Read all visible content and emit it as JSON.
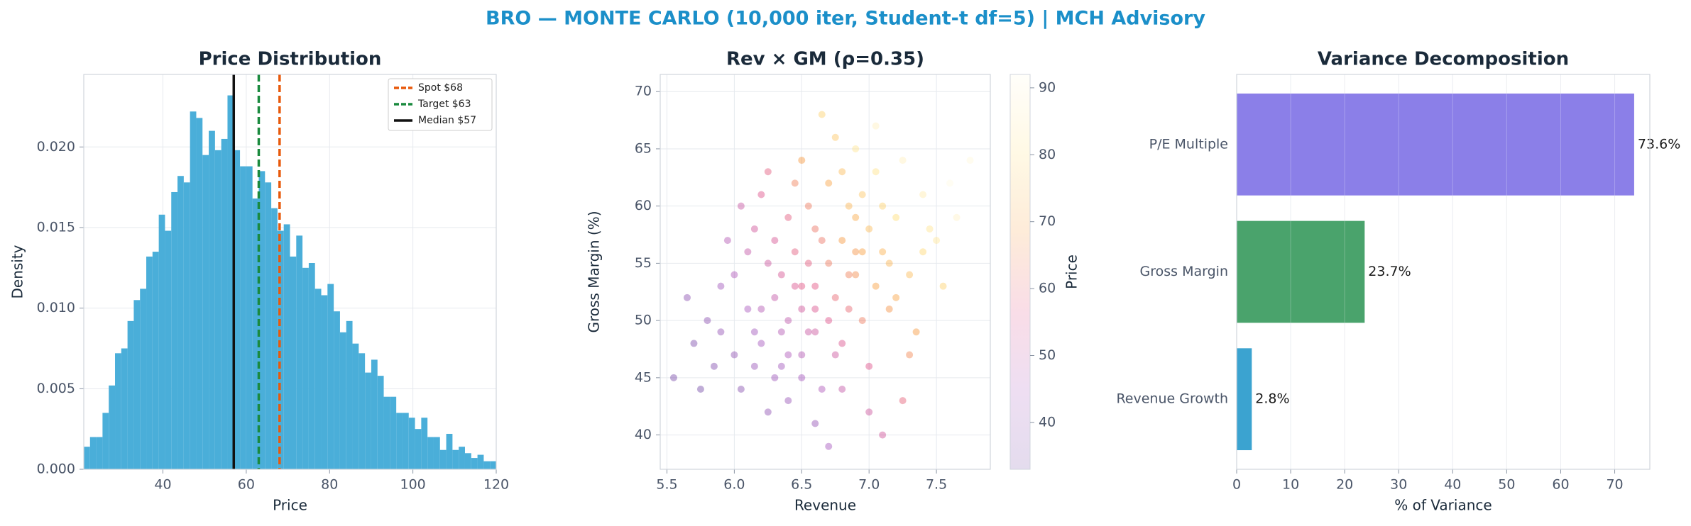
{
  "title": "BRO — MONTE CARLO (10,000 iter, Student-t df=5) | MCH Advisory",
  "chart_data": [
    {
      "type": "histogram",
      "title": "Price Distribution",
      "x_label": "Price",
      "y_label": "Density",
      "color": "#4aaed9",
      "bins": [
        21,
        22.5,
        24,
        25.5,
        27,
        28.5,
        30,
        31.5,
        33,
        34.5,
        36,
        37.5,
        39,
        40.5,
        42,
        43.5,
        45,
        46.5,
        48,
        49.5,
        51,
        52.5,
        54,
        55.5,
        57,
        58.5,
        60,
        61.5,
        63,
        64.5,
        66,
        67.5,
        69,
        70.5,
        72,
        73.5,
        75,
        76.5,
        78,
        79.5,
        81,
        82.5,
        84,
        85.5,
        87,
        88.5,
        90,
        91.5,
        93,
        94.5,
        96,
        97.5,
        99,
        100.5,
        102,
        103.5,
        105,
        106.5,
        108,
        109.5,
        111,
        112.5,
        114,
        115.5,
        117,
        118.5,
        120
      ],
      "values": [
        0.0014,
        0.002,
        0.002,
        0.0035,
        0.0052,
        0.0072,
        0.0075,
        0.0092,
        0.0105,
        0.0112,
        0.0132,
        0.0135,
        0.0158,
        0.0148,
        0.0172,
        0.0182,
        0.0178,
        0.0222,
        0.0218,
        0.0195,
        0.021,
        0.0198,
        0.0205,
        0.0232,
        0.0198,
        0.0188,
        0.0188,
        0.0168,
        0.0185,
        0.0178,
        0.0162,
        0.0148,
        0.0152,
        0.0132,
        0.0145,
        0.0125,
        0.0128,
        0.0112,
        0.0108,
        0.0115,
        0.0098,
        0.0085,
        0.0092,
        0.0078,
        0.0072,
        0.006,
        0.0068,
        0.0058,
        0.0045,
        0.0045,
        0.0035,
        0.0035,
        0.0032,
        0.0025,
        0.0032,
        0.002,
        0.002,
        0.0012,
        0.0022,
        0.0012,
        0.0014,
        0.001,
        0.0007,
        0.0009,
        0.0005,
        0.0005
      ],
      "vlines": [
        {
          "name": "Spot $68",
          "value": 68,
          "color": "#e8590c",
          "dashed": true
        },
        {
          "name": "Target $63",
          "value": 63,
          "color": "#1a8a3e",
          "dashed": true
        },
        {
          "name": "Median $57",
          "value": 57,
          "color": "#111111",
          "dashed": false
        }
      ],
      "xlim": [
        21,
        120
      ],
      "xticks": [
        40,
        60,
        80,
        100,
        120
      ],
      "ylim": [
        0,
        0.0245
      ],
      "yticks": [
        {
          "value": 0,
          "label": "0.000"
        },
        0.005,
        {
          "value": 0.01,
          "label": "0.010"
        },
        0.015,
        {
          "value": 0.02,
          "label": "0.020"
        }
      ],
      "grid": true,
      "legend": "upper right"
    },
    {
      "type": "scatter",
      "title": "Rev × GM (ρ=0.35)",
      "x_label": "Revenue",
      "y_label": "Gross Margin (%)",
      "colorbar_label": "Price",
      "x": [
        6.5,
        6.6,
        6.7,
        6.4,
        6.8,
        6.3,
        6.9,
        6.55,
        7.0,
        6.2,
        6.75,
        6.45,
        7.1,
        6.35,
        6.85,
        6.1,
        6.6,
        7.2,
        6.5,
        6.95,
        6.25,
        7.3,
        6.0,
        6.7,
        6.65,
        7.4,
        5.9,
        6.8,
        7.05,
        6.15,
        6.4,
        7.5,
        5.8,
        6.9,
        6.55,
        7.15,
        6.3,
        6.05,
        7.6,
        6.45,
        5.7,
        7.0,
        6.2,
        6.75,
        7.25,
        6.6,
        5.95,
        6.85,
        7.35,
        6.35,
        6.5,
        7.45,
        5.85,
        6.7,
        6.25,
        7.1,
        6.0,
        6.95,
        6.4,
        7.2,
        5.65,
        6.65,
        6.15,
        7.55,
        6.8,
        6.55,
        5.75,
        7.05,
        6.3,
        6.9,
        6.45,
        7.3,
        6.1,
        6.75,
        7.65,
        6.2,
        6.6,
        7.0,
        5.55,
        6.85,
        6.5,
        7.4,
        6.05,
        6.7,
        7.15,
        6.35,
        6.95,
        5.9,
        6.65,
        7.25,
        6.4,
        6.8,
        7.75,
        6.25,
        6.6,
        7.05,
        6.15,
        6.9,
        6.5,
        7.1
      ],
      "y": [
        53,
        51,
        55,
        50,
        57,
        52,
        54,
        49,
        58,
        48,
        52,
        56,
        56,
        46,
        60,
        51,
        58,
        59,
        47,
        50,
        55,
        54,
        47,
        62,
        44,
        61,
        53,
        48,
        63,
        58,
        43,
        57,
        50,
        65,
        60,
        51,
        57,
        44,
        62,
        53,
        48,
        46,
        61,
        66,
        64,
        41,
        57,
        54,
        49,
        49,
        45,
        58,
        46,
        50,
        63,
        60,
        54,
        56,
        59,
        52,
        52,
        68,
        49,
        53,
        44,
        55,
        44,
        67,
        45,
        59,
        62,
        47,
        56,
        47,
        59,
        51,
        53,
        42,
        45,
        51,
        64,
        56,
        60,
        39,
        55,
        54,
        61,
        49,
        57,
        43,
        47,
        63,
        64,
        42,
        49,
        53,
        46,
        56,
        51,
        40
      ],
      "c": [
        57,
        55,
        63,
        49,
        68,
        50,
        66,
        51,
        74,
        44,
        60,
        58,
        72,
        43,
        73,
        45,
        62,
        80,
        47,
        63,
        52,
        74,
        39,
        70,
        46,
        86,
        43,
        55,
        82,
        53,
        41,
        84,
        38,
        83,
        63,
        67,
        54,
        37,
        92,
        55,
        35,
        56,
        56,
        76,
        88,
        40,
        47,
        64,
        68,
        47,
        44,
        83,
        36,
        56,
        58,
        78,
        46,
        69,
        58,
        70,
        38,
        78,
        43,
        78,
        50,
        58,
        33,
        88,
        42,
        71,
        64,
        65,
        50,
        52,
        89,
        47,
        57,
        52,
        34,
        60,
        68,
        79,
        51,
        44,
        73,
        54,
        76,
        40,
        62,
        59,
        46,
        74,
        91,
        39,
        52,
        69,
        41,
        67,
        53,
        53
      ],
      "colormap": [
        "#4a148c",
        "#8e24aa",
        "#d81b60",
        "#f57c00",
        "#ffd54f",
        "#fff8dc"
      ],
      "xlim": [
        5.45,
        7.9
      ],
      "xticks": [
        5.5,
        {
          "value": 6,
          "label": "6.0"
        },
        6.5,
        {
          "value": 7,
          "label": "7.0"
        },
        7.5
      ],
      "ylim": [
        37,
        71.5
      ],
      "yticks": [
        40,
        45,
        50,
        55,
        60,
        65,
        70
      ],
      "clim": [
        33,
        92
      ],
      "cticks": [
        40,
        50,
        60,
        70,
        80,
        90
      ],
      "grid": true
    },
    {
      "type": "barh",
      "title": "Variance Decomposition",
      "x_label": "% of Variance",
      "categories": [
        "Revenue Growth",
        "Gross Margin",
        "P/E Multiple"
      ],
      "values": [
        2.8,
        23.7,
        73.6
      ],
      "value_labels": [
        "2.8%",
        "23.7%",
        "73.6%"
      ],
      "colors": [
        "#3ba3d0",
        "#4aa36c",
        "#8b7fe8"
      ],
      "xlim": [
        0,
        76.5
      ],
      "xticks": [
        0,
        10,
        20,
        30,
        40,
        50,
        60,
        70
      ],
      "grid": true
    }
  ]
}
